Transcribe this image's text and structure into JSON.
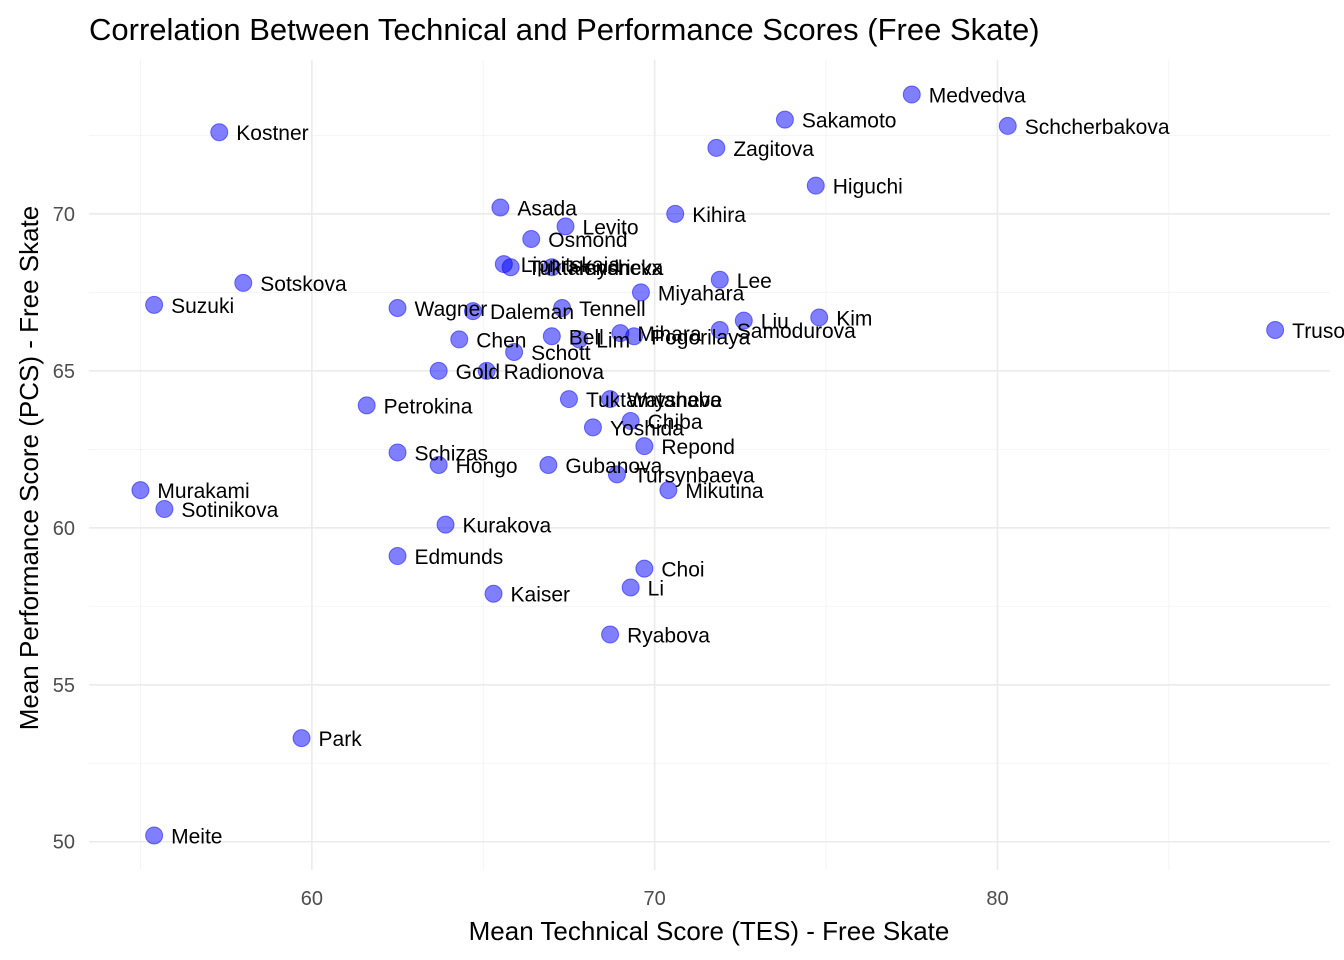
{
  "chart_data": {
    "type": "scatter",
    "title": "Correlation Between Technical and Performance Scores (Free Skate)",
    "xlabel": "Mean Technical Score (TES) - Free Skate",
    "ylabel": "Mean Performance Score (PCS) - Free Skate",
    "xlim": [
      53.5,
      89.7
    ],
    "ylim": [
      49.1,
      74.9
    ],
    "x_ticks": [
      60,
      70,
      80
    ],
    "y_ticks": [
      50,
      55,
      60,
      65,
      70
    ],
    "grid": true,
    "colors": {
      "point": "#0000ff"
    },
    "points": [
      {
        "name": "Medvedva",
        "x": 77.5,
        "y": 73.8
      },
      {
        "name": "Sakamoto",
        "x": 73.8,
        "y": 73.0
      },
      {
        "name": "Schcherbakova",
        "x": 80.3,
        "y": 72.8
      },
      {
        "name": "Kostner",
        "x": 57.3,
        "y": 72.6
      },
      {
        "name": "Zagitova",
        "x": 71.8,
        "y": 72.1
      },
      {
        "name": "Higuchi",
        "x": 74.7,
        "y": 70.9
      },
      {
        "name": "Asada",
        "x": 65.5,
        "y": 70.2
      },
      {
        "name": "Kihira",
        "x": 70.6,
        "y": 70.0
      },
      {
        "name": "Levito",
        "x": 67.4,
        "y": 69.6
      },
      {
        "name": "Osmond",
        "x": 66.4,
        "y": 69.2
      },
      {
        "name": "Lipnitskaia",
        "x": 65.6,
        "y": 68.4
      },
      {
        "name": "Hendrickx",
        "x": 67.0,
        "y": 68.3
      },
      {
        "name": "Tuktamysheva",
        "x": 65.8,
        "y": 68.3
      },
      {
        "name": "Lee",
        "x": 71.9,
        "y": 67.9
      },
      {
        "name": "Sotskova",
        "x": 58.0,
        "y": 67.8
      },
      {
        "name": "Miyahara",
        "x": 69.6,
        "y": 67.5
      },
      {
        "name": "Suzuki",
        "x": 55.4,
        "y": 67.1
      },
      {
        "name": "Wagner",
        "x": 62.5,
        "y": 67.0
      },
      {
        "name": "Tennell",
        "x": 67.3,
        "y": 67.0
      },
      {
        "name": "Daleman",
        "x": 64.7,
        "y": 66.9
      },
      {
        "name": "Liu",
        "x": 72.6,
        "y": 66.6
      },
      {
        "name": "Kim",
        "x": 74.8,
        "y": 66.7
      },
      {
        "name": "Trusova",
        "x": 88.1,
        "y": 66.3
      },
      {
        "name": "Samodurova",
        "x": 71.9,
        "y": 66.3
      },
      {
        "name": "Mihara",
        "x": 69.0,
        "y": 66.2
      },
      {
        "name": "Pogorilaya",
        "x": 69.4,
        "y": 66.1
      },
      {
        "name": "Bell",
        "x": 67.0,
        "y": 66.1
      },
      {
        "name": "Lim",
        "x": 67.8,
        "y": 66.0
      },
      {
        "name": "Chen",
        "x": 64.3,
        "y": 66.0
      },
      {
        "name": "Schott",
        "x": 65.9,
        "y": 65.6
      },
      {
        "name": "Gold",
        "x": 63.7,
        "y": 65.0
      },
      {
        "name": "Radionova",
        "x": 65.1,
        "y": 65.0
      },
      {
        "name": "Petrokina",
        "x": 61.6,
        "y": 63.9
      },
      {
        "name": "Watanabe",
        "x": 68.7,
        "y": 64.1
      },
      {
        "name": "Tuktamysheva",
        "x": 67.5,
        "y": 64.1
      },
      {
        "name": "Chiba",
        "x": 69.3,
        "y": 63.4
      },
      {
        "name": "Yoshida",
        "x": 68.2,
        "y": 63.2
      },
      {
        "name": "Repond",
        "x": 69.7,
        "y": 62.6
      },
      {
        "name": "Schizas",
        "x": 62.5,
        "y": 62.4
      },
      {
        "name": "Hongo",
        "x": 63.7,
        "y": 62.0
      },
      {
        "name": "Gubanova",
        "x": 66.9,
        "y": 62.0
      },
      {
        "name": "Tursynbaeva",
        "x": 68.9,
        "y": 61.7
      },
      {
        "name": "Mikutina",
        "x": 70.4,
        "y": 61.2
      },
      {
        "name": "Murakami",
        "x": 55.0,
        "y": 61.2
      },
      {
        "name": "Sotinikova",
        "x": 55.7,
        "y": 60.6
      },
      {
        "name": "Kurakova",
        "x": 63.9,
        "y": 60.1
      },
      {
        "name": "Edmunds",
        "x": 62.5,
        "y": 59.1
      },
      {
        "name": "Choi",
        "x": 69.7,
        "y": 58.7
      },
      {
        "name": "Li",
        "x": 69.3,
        "y": 58.1
      },
      {
        "name": "Kaiser",
        "x": 65.3,
        "y": 57.9
      },
      {
        "name": "Ryabova",
        "x": 68.7,
        "y": 56.6
      },
      {
        "name": "Park",
        "x": 59.7,
        "y": 53.3
      },
      {
        "name": "Meite",
        "x": 55.4,
        "y": 50.2
      }
    ]
  }
}
